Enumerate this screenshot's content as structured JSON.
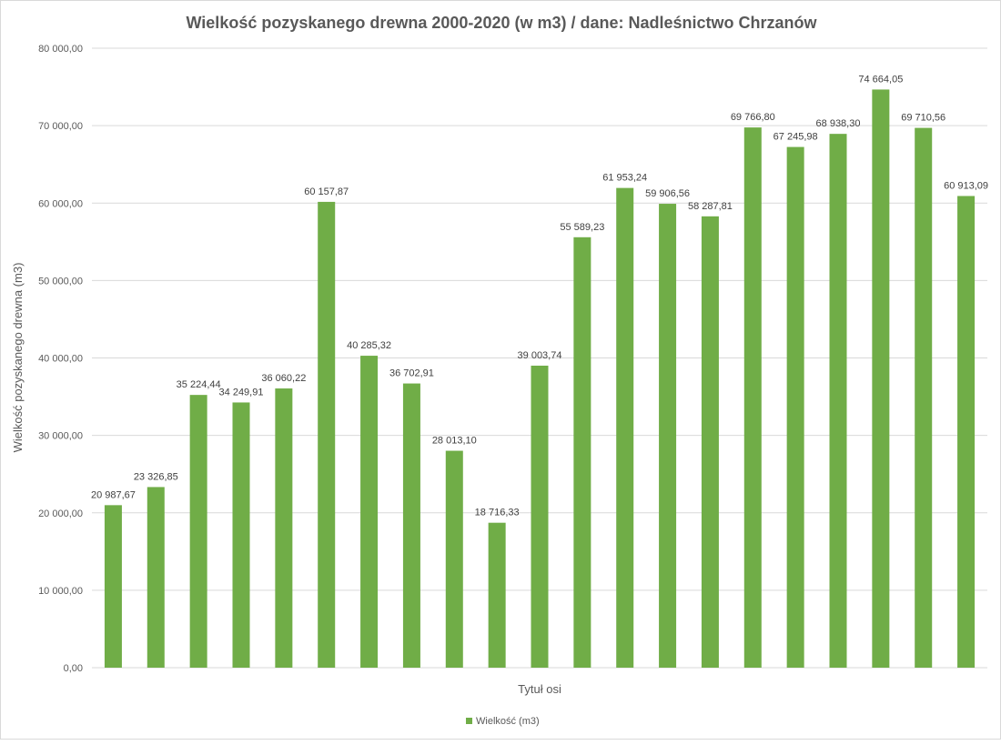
{
  "chart_data": {
    "type": "bar",
    "title": "Wielkość pozyskanego drewna 2000-2020 (w m3) / dane: Nadleśnictwo Chrzanów",
    "xlabel": "Tytuł osi",
    "ylabel": "Wielkość pozyskanego drewna (m3)",
    "ylim": [
      0,
      80000
    ],
    "yticks": [
      0,
      10000,
      20000,
      30000,
      40000,
      50000,
      60000,
      70000,
      80000
    ],
    "ytick_labels": [
      "0,00",
      "10 000,00",
      "20 000,00",
      "30 000,00",
      "40 000,00",
      "50 000,00",
      "60 000,00",
      "70 000,00",
      "80 000,00"
    ],
    "grid": true,
    "legend_position": "bottom",
    "color": "#70AD47",
    "series": [
      {
        "name": "Wielkość (m3)",
        "values": [
          20987.67,
          23326.85,
          35224.44,
          34249.91,
          36060.22,
          60157.87,
          40285.32,
          36702.91,
          28013.1,
          18716.33,
          39003.74,
          55589.23,
          61953.24,
          59906.56,
          58287.81,
          69766.8,
          67245.98,
          68938.3,
          74664.05,
          69710.56,
          60913.09
        ],
        "labels": [
          "20 987,67",
          "23 326,85",
          "35 224,44",
          "34 249,91",
          "36 060,22",
          "60 157,87",
          "40 285,32",
          "36 702,91",
          "28 013,10",
          "18 716,33",
          "39 003,74",
          "55 589,23",
          "61 953,24",
          "59 906,56",
          "58 287,81",
          "69 766,80",
          "67 245,98",
          "68 938,30",
          "74 664,05",
          "69 710,56",
          "60 913,09"
        ]
      }
    ]
  }
}
